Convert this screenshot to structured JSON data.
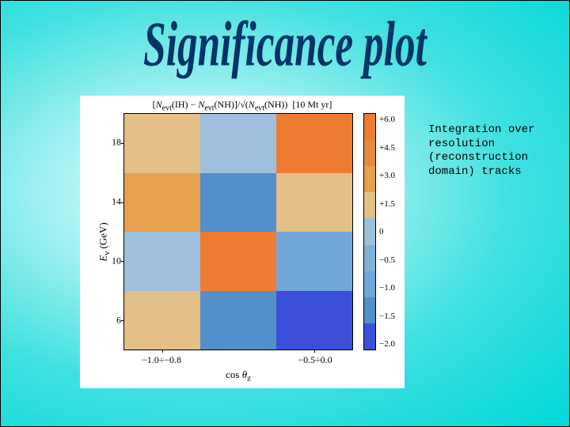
{
  "title": "Significance plot",
  "annotation": "Integration over resolution (reconstruction domain) tracks",
  "chart": {
    "type": "heatmap",
    "title_formula": "[N_evt(IH) − N_evt(NH)] / √(N_evt(NH))  [10 Mt yr]",
    "xlabel": "cos θ_z",
    "ylabel": "E_ν (GeV)",
    "y_ticks": [
      6,
      10,
      14,
      18
    ],
    "x_tick_labels": [
      "−1.0÷−0.8",
      "",
      "−0.5÷0.0"
    ],
    "grid_rows": 4,
    "grid_cols": 3,
    "cell_colors": [
      [
        "#e3c088",
        "#9fc0dc",
        "#ed7c31"
      ],
      [
        "#e6a04e",
        "#528fcb",
        "#e3c088"
      ],
      [
        "#9fc0dc",
        "#ed7c31",
        "#6fa8d8"
      ],
      [
        "#e3c088",
        "#528fcb",
        "#3b4fd8"
      ]
    ],
    "colorbar": {
      "tick_labels": [
        "+6.0",
        "+4.5",
        "+3.0",
        "+1.5",
        "0",
        "−0.5",
        "−1.0",
        "−1.5",
        "−2.0"
      ],
      "segment_colors": [
        "#ed7c31",
        "#e28a3f",
        "#e6a04e",
        "#e3c088",
        "#9fc0dc",
        "#7fb0d8",
        "#6fa8d8",
        "#528fcb",
        "#3b4fd8"
      ]
    },
    "background_color": "#ffffff",
    "border_color": "#000000",
    "tick_fontsize": 12,
    "label_fontsize": 13,
    "title_fontsize": 12
  },
  "style": {
    "title_color": "#003366",
    "title_font": "Times New Roman",
    "title_fontsize": 54,
    "annotation_font": "Courier New",
    "annotation_fontsize": 14,
    "slide_bg_center": "#f0ffff",
    "slide_bg_edge": "#00d8d8"
  }
}
